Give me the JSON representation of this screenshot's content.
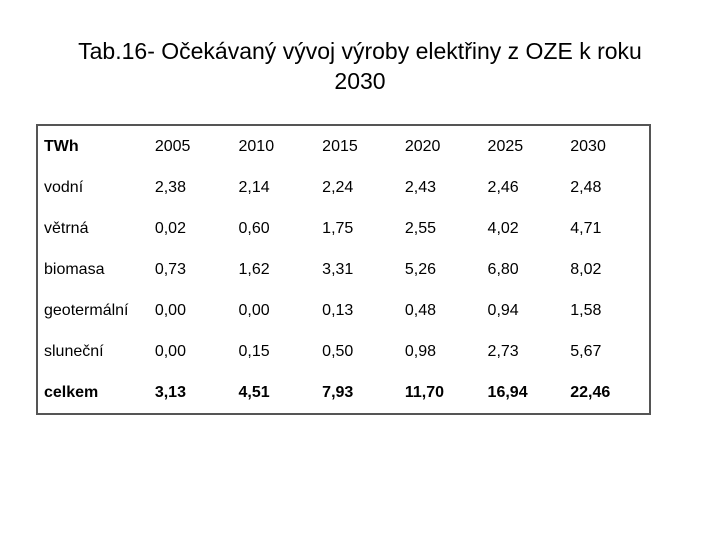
{
  "title": "Tab.16- Očekávaný vývoj výroby elektřiny z OZE k roku 2030",
  "table": {
    "header": [
      "TWh",
      "2005",
      "2010",
      "2015",
      "2020",
      "2025",
      "2030"
    ],
    "rows": [
      [
        "vodní",
        "2,38",
        "2,14",
        "2,24",
        "2,43",
        "2,46",
        "2,48"
      ],
      [
        "větrná",
        "0,02",
        "0,60",
        "1,75",
        "2,55",
        "4,02",
        "4,71"
      ],
      [
        "biomasa",
        "0,73",
        "1,62",
        "3,31",
        "5,26",
        "6,80",
        "8,02"
      ],
      [
        "geotermální",
        "0,00",
        "0,00",
        "0,13",
        "0,48",
        "0,94",
        "1,58"
      ],
      [
        "sluneční",
        "0,00",
        "0,15",
        "0,50",
        "0,98",
        "2,73",
        "5,67"
      ],
      [
        "celkem",
        "3,13",
        "4,51",
        "7,93",
        "11,70",
        "16,94",
        "22,46"
      ]
    ]
  }
}
